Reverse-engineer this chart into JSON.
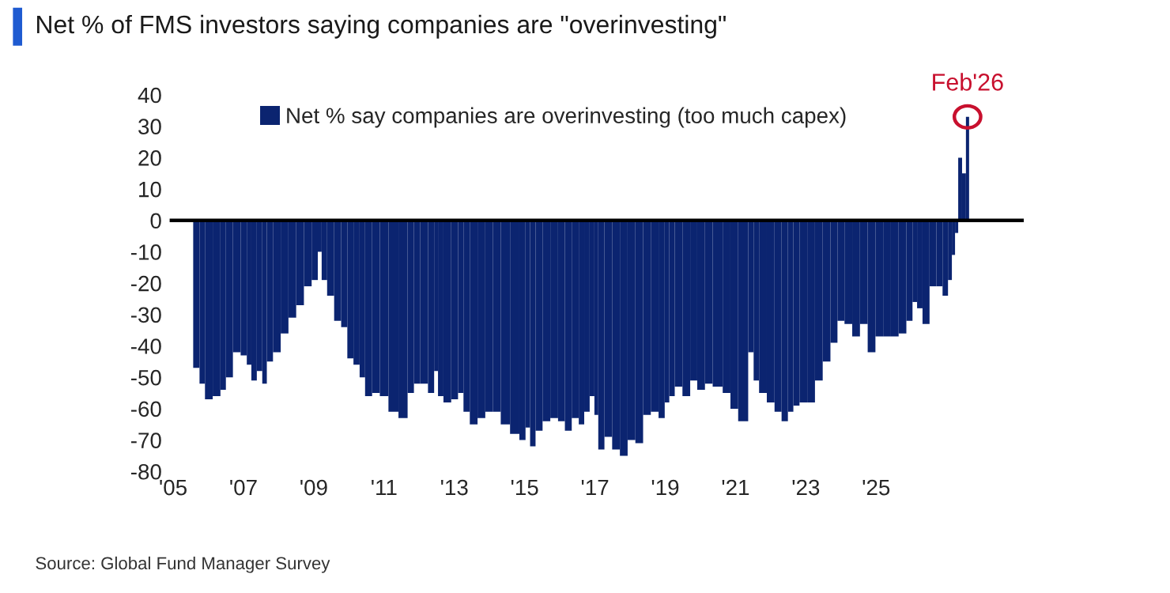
{
  "chart_data": {
    "type": "bar",
    "title": "Net % of FMS investors saying companies are \"overinvesting\"",
    "x": [
      2005.66,
      2005.84,
      2005.97,
      2006.28,
      2006.41,
      2006.59,
      2006.81,
      2007.03,
      2007.16,
      2007.29,
      2007.47,
      2007.6,
      2007.73,
      2007.95,
      2008.17,
      2008.39,
      2008.61,
      2008.83,
      2009.05,
      2009.18,
      2009.27,
      2009.49,
      2009.67,
      2009.89,
      2010.02,
      2010.24,
      2010.37,
      2010.55,
      2010.77,
      2010.99,
      2011.26,
      2011.56,
      2011.78,
      2011.92,
      2012.14,
      2012.36,
      2012.49,
      2012.58,
      2012.8,
      2013.02,
      2013.19,
      2013.33,
      2013.55,
      2013.77,
      2013.99,
      2014.21,
      2014.43,
      2014.74,
      2014.96,
      2015.09,
      2015.22,
      2015.4,
      2015.62,
      2015.84,
      2016.06,
      2016.23,
      2016.45,
      2016.63,
      2016.76,
      2016.94,
      2017.03,
      2017.16,
      2017.38,
      2017.6,
      2017.82,
      2018.04,
      2018.26,
      2018.48,
      2018.7,
      2018.92,
      2019.05,
      2019.18,
      2019.36,
      2019.62,
      2019.8,
      2020.02,
      2020.24,
      2020.46,
      2020.81,
      2020.9,
      2021.25,
      2021.47,
      2021.56,
      2021.78,
      2022.0,
      2022.22,
      2022.4,
      2022.58,
      2022.71,
      2022.93,
      2023.15,
      2023.37,
      2023.59,
      2023.81,
      2023.99,
      2024.21,
      2024.43,
      2024.65,
      2024.87,
      2025.09,
      2025.31,
      2025.53,
      2025.75,
      2025.97,
      2026.1,
      2026.23,
      2026.41,
      2026.63,
      2026.8,
      2026.98,
      2027.11,
      2027.2,
      2027.29,
      2027.38,
      2027.51,
      2027.6
    ],
    "series": [
      {
        "name": "Net % say companies are overinvesting (too much capex)",
        "color": "#0b2470",
        "values": [
          -47,
          -52,
          -57,
          -56,
          -54,
          -50,
          -42,
          -43,
          -46,
          -51,
          -48,
          -52,
          -45,
          -42,
          -36,
          -31,
          -27,
          -21,
          -19,
          -10,
          -19,
          -24,
          -32,
          -34,
          -44,
          -46,
          -50,
          -56,
          -55,
          -56,
          -61,
          -63,
          -55,
          -52,
          -52,
          -55,
          -48,
          -56,
          -58,
          -57,
          -55,
          -61,
          -65,
          -63,
          -61,
          -61,
          -65,
          -68,
          -70,
          -66,
          -72,
          -67,
          -64,
          -63,
          -64,
          -67,
          -63,
          -65,
          -61,
          -56,
          -62,
          -73,
          -69,
          -73,
          -75,
          -70,
          -71,
          -62,
          -61,
          -63,
          -58,
          -56,
          -53,
          -56,
          -51,
          -54,
          -52,
          -53,
          -55,
          -60,
          -64,
          -42,
          -51,
          -55,
          -58,
          -61,
          -64,
          -61,
          -59,
          -58,
          -58,
          -51,
          -45,
          -39,
          -32,
          -33,
          -37,
          -33,
          -42,
          -37,
          -37,
          -37,
          -36,
          -32,
          -26,
          -28,
          -33,
          -21,
          -21,
          -24,
          -19,
          -11,
          -4,
          20,
          15,
          33
        ]
      }
    ],
    "xlim": [
      2004.9,
      2029.2
    ],
    "xticks": [
      {
        "value": 2005,
        "label": "'05"
      },
      {
        "value": 2007,
        "label": "'07"
      },
      {
        "value": 2009,
        "label": "'09"
      },
      {
        "value": 2011,
        "label": "'11"
      },
      {
        "value": 2013,
        "label": "'13"
      },
      {
        "value": 2015,
        "label": "'15"
      },
      {
        "value": 2017,
        "label": "'17"
      },
      {
        "value": 2019,
        "label": "'19"
      },
      {
        "value": 2021,
        "label": "'21"
      },
      {
        "value": 2023,
        "label": "'23"
      },
      {
        "value": 2025,
        "label": "'25"
      }
    ],
    "ylim": [
      -80,
      40
    ],
    "yticks": [
      -80,
      -70,
      -60,
      -50,
      -40,
      -30,
      -20,
      -10,
      0,
      10,
      20,
      30,
      40
    ],
    "ref_lines": [
      {
        "axis": "y",
        "value": 0,
        "color": "#000000"
      }
    ],
    "annotations": [
      {
        "text": "Feb'26",
        "x": 2027.6,
        "y": 33
      },
      "Source: Global Fund Manager Survey"
    ],
    "legend": "top",
    "grid": false
  }
}
